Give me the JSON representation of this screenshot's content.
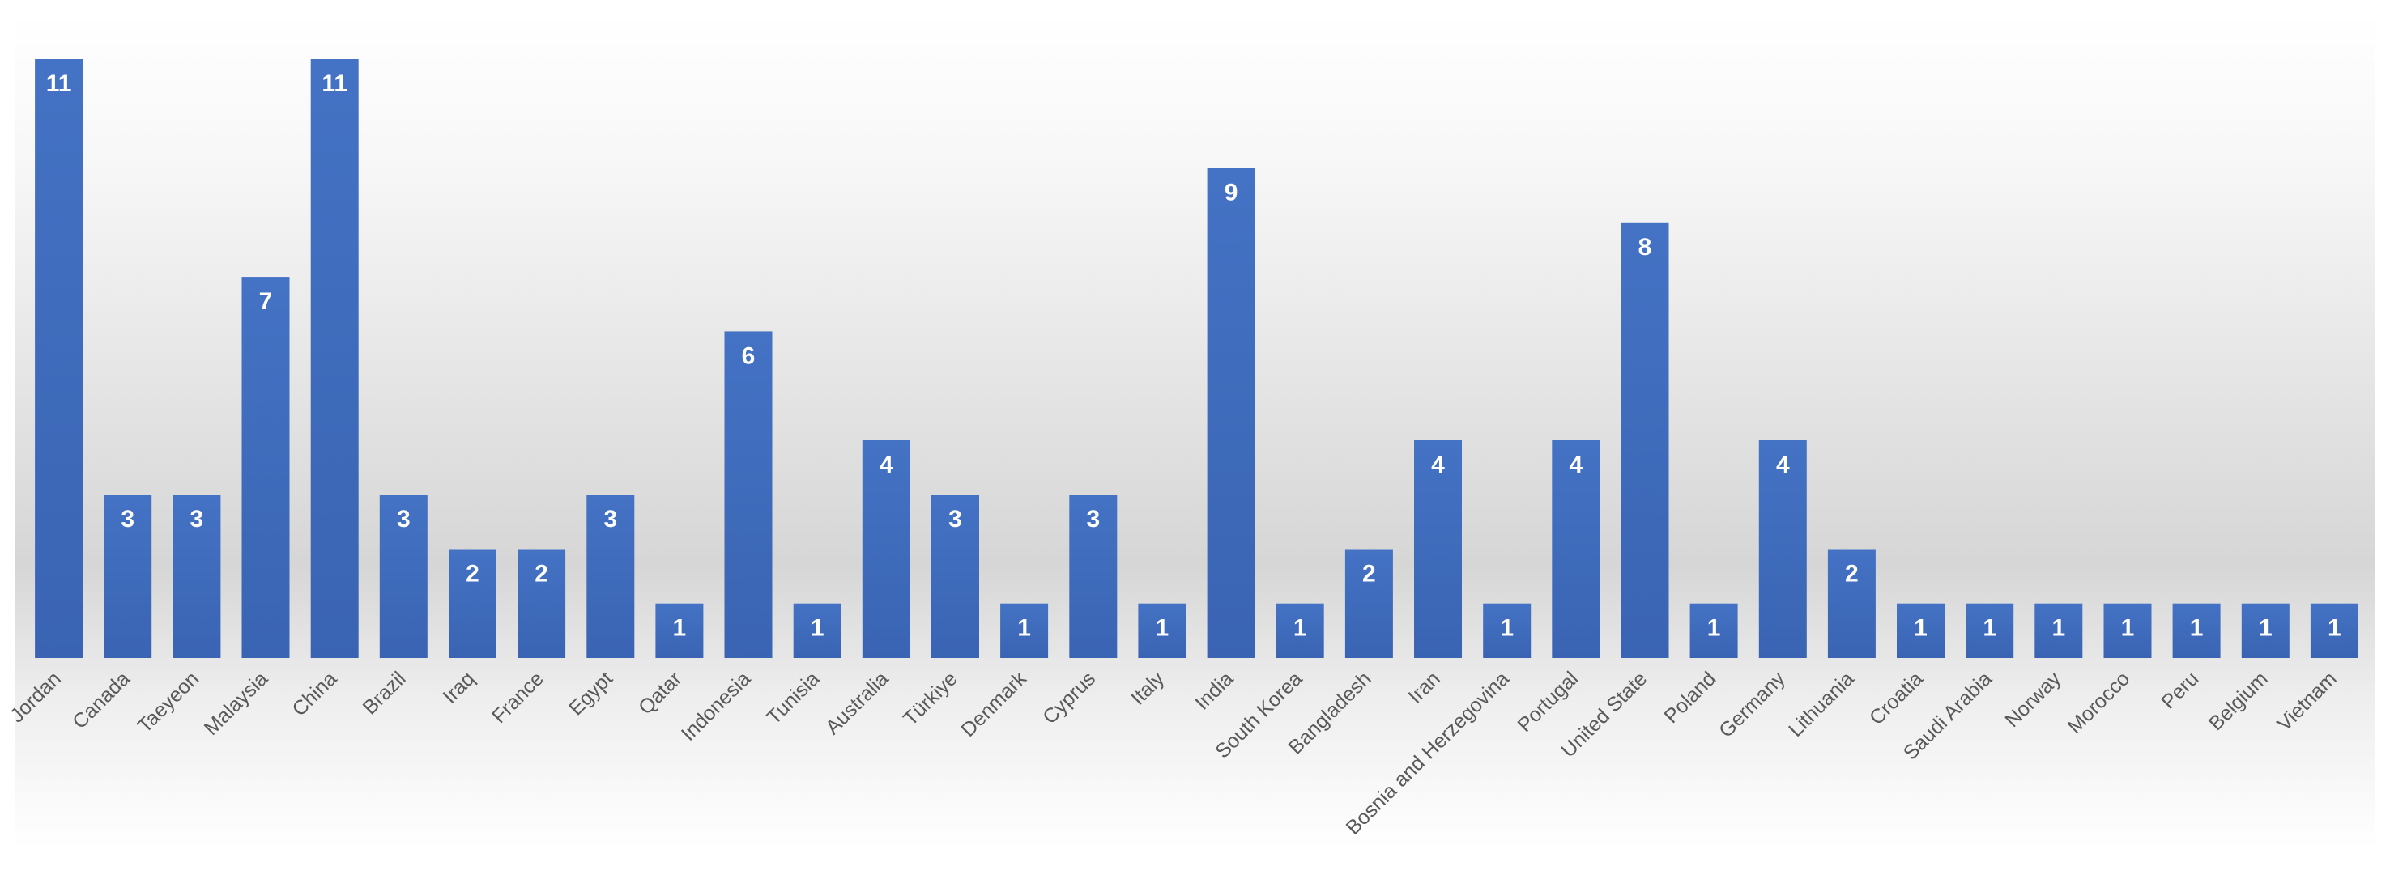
{
  "chart_data": {
    "type": "bar",
    "categories": [
      "Jordan",
      "Canada",
      "Taeyeon",
      "Malaysia",
      "China",
      "Brazil",
      "Iraq",
      "France",
      "Egypt",
      "Qatar",
      "Indonesia",
      "Tunisia",
      "Australia",
      "Türkiye",
      "Denmark",
      "Cyprus",
      "Italy",
      "India",
      "South Korea",
      "Bangladesh",
      "Iran",
      "Bosnia and Herzegovina",
      "Portugal",
      "United State",
      "Poland",
      "Germany",
      "Lithuania",
      "Croatia",
      "Saudi Arabia",
      "Norway",
      "Morocco",
      "Peru",
      "Belgium",
      "Vietnam"
    ],
    "values": [
      11,
      3,
      3,
      7,
      11,
      3,
      2,
      2,
      3,
      1,
      6,
      1,
      4,
      3,
      1,
      3,
      1,
      9,
      1,
      2,
      4,
      1,
      4,
      8,
      1,
      4,
      2,
      1,
      1,
      1,
      1,
      1,
      1,
      1
    ],
    "title": "",
    "xlabel": "",
    "ylabel": "",
    "ylim": [
      0,
      11
    ],
    "data_labels": true,
    "grid": false,
    "legend": "none",
    "colors": {
      "bar": "#4472c4",
      "bar_dark": "#3a64b3",
      "bar_label": "#ffffff",
      "tick_label": "#595959",
      "background": "#ffffff",
      "background_shade": "#d9d9d9"
    }
  }
}
